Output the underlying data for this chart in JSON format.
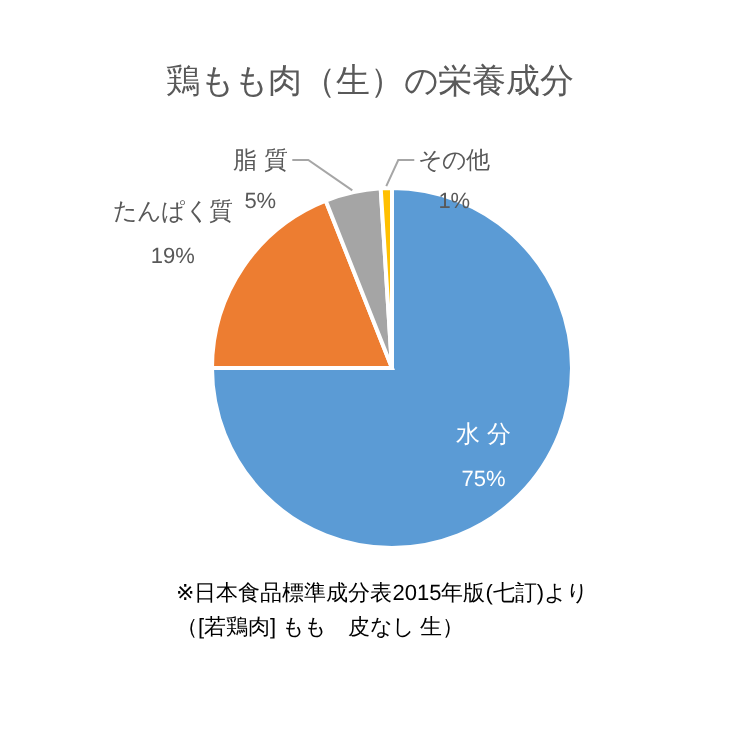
{
  "chart_data": {
    "type": "pie",
    "title": "鶏もも肉（生）の栄養成分",
    "categories": [
      "水 分",
      "たんぱく質",
      "脂 質",
      "その他"
    ],
    "values": [
      75,
      19,
      5,
      1
    ],
    "colors": [
      "#5b9bd5",
      "#ed7d31",
      "#a5a5a5",
      "#ffc000"
    ],
    "value_labels": [
      "75%",
      "19%",
      "5%",
      "1%"
    ],
    "annotations": [
      "※日本食品標準成分表2015年版(七訂)より",
      "（[若鶏肉] もも　皮なし 生）"
    ]
  }
}
